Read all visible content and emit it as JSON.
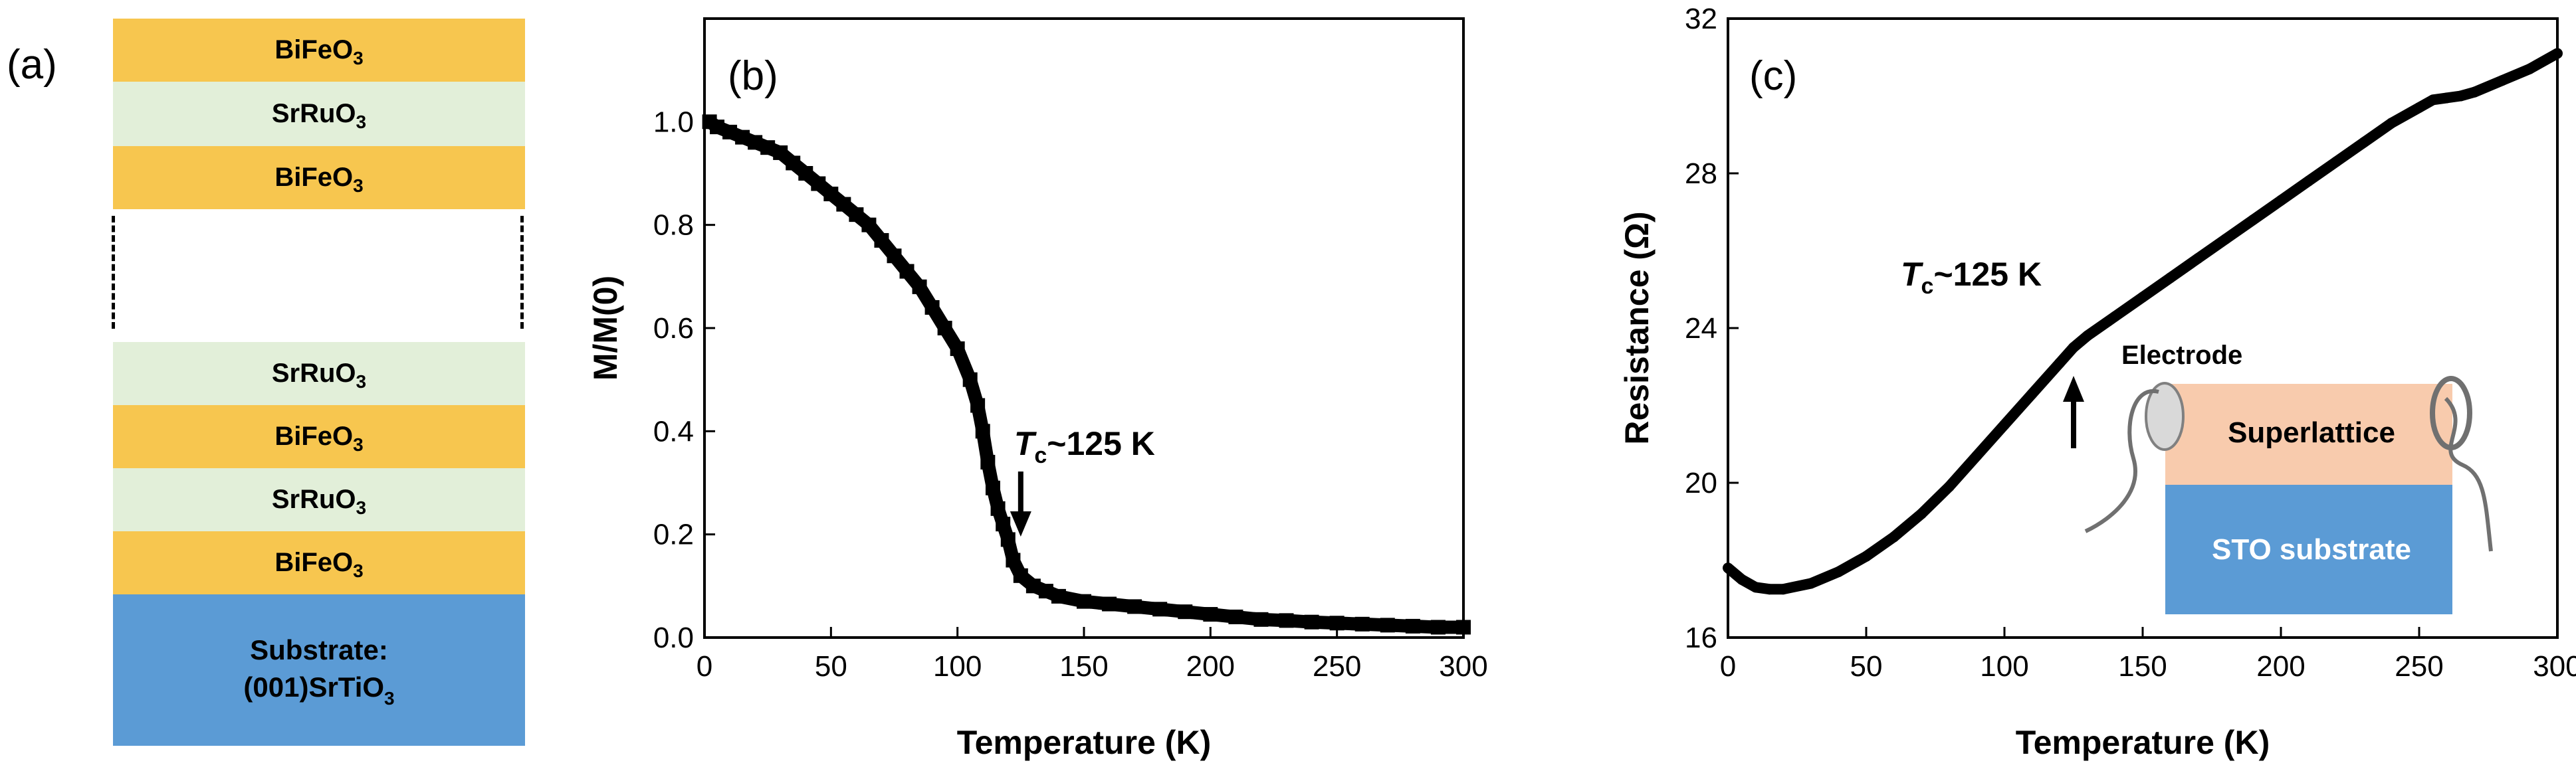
{
  "panel_a": {
    "label": "(a)",
    "layers_top": [
      {
        "formula": "BiFeO",
        "sub": "3",
        "kind": "bfo"
      },
      {
        "formula": "SrRuO",
        "sub": "3",
        "kind": "sro"
      },
      {
        "formula": "BiFeO",
        "sub": "3",
        "kind": "bfo"
      }
    ],
    "layers_bottom": [
      {
        "formula": "SrRuO",
        "sub": "3",
        "kind": "sro"
      },
      {
        "formula": "BiFeO",
        "sub": "3",
        "kind": "bfo"
      },
      {
        "formula": "SrRuO",
        "sub": "3",
        "kind": "sro"
      },
      {
        "formula": "BiFeO",
        "sub": "3",
        "kind": "bfo"
      }
    ],
    "substrate_line1": "Substrate:",
    "substrate_line2": "(001)SrTiO",
    "substrate_sub": "3",
    "colors": {
      "bfo": "#F7C64F",
      "sro": "#E2EFD9",
      "substrate": "#5B9BD5"
    }
  },
  "chart_data": [
    {
      "panel": "(b)",
      "type": "scatter",
      "xlabel": "Temperature (K)",
      "ylabel": "M/M(0)",
      "xlim": [
        0,
        300
      ],
      "ylim": [
        0,
        1.2
      ],
      "xticks": [
        0,
        50,
        100,
        150,
        200,
        250,
        300
      ],
      "yticks": [
        0.0,
        0.2,
        0.4,
        0.6,
        0.8,
        1.0
      ],
      "ytick_labels": [
        "0.0",
        "0.2",
        "0.4",
        "0.6",
        "0.8",
        "1.0"
      ],
      "annotation": {
        "italic": "T",
        "sub": "c",
        "text": "~125 K",
        "arrow_x": 125
      },
      "series": [
        {
          "color": "#000000",
          "x": [
            2,
            5,
            10,
            15,
            20,
            25,
            30,
            35,
            40,
            45,
            50,
            55,
            60,
            65,
            70,
            75,
            80,
            85,
            90,
            95,
            100,
            105,
            108,
            110,
            112,
            114,
            116,
            118,
            120,
            122,
            125,
            130,
            135,
            140,
            150,
            160,
            170,
            180,
            190,
            200,
            210,
            220,
            230,
            240,
            250,
            260,
            270,
            280,
            290,
            300
          ],
          "y": [
            1.0,
            0.99,
            0.98,
            0.97,
            0.96,
            0.95,
            0.94,
            0.92,
            0.9,
            0.88,
            0.86,
            0.84,
            0.82,
            0.8,
            0.77,
            0.74,
            0.71,
            0.68,
            0.64,
            0.6,
            0.56,
            0.5,
            0.45,
            0.4,
            0.34,
            0.29,
            0.25,
            0.22,
            0.19,
            0.15,
            0.12,
            0.1,
            0.09,
            0.08,
            0.07,
            0.065,
            0.06,
            0.055,
            0.05,
            0.045,
            0.04,
            0.035,
            0.033,
            0.03,
            0.028,
            0.026,
            0.024,
            0.022,
            0.02,
            0.02
          ]
        }
      ]
    },
    {
      "panel": "(c)",
      "type": "line",
      "xlabel": "Temperature (K)",
      "ylabel": "Resistance (Ω)",
      "xlim": [
        0,
        300
      ],
      "ylim": [
        16,
        32
      ],
      "xticks": [
        0,
        50,
        100,
        150,
        200,
        250,
        300
      ],
      "yticks": [
        16,
        20,
        24,
        28,
        32
      ],
      "ytick_labels": [
        "16",
        "20",
        "24",
        "28",
        "32"
      ],
      "annotation": {
        "italic": "T",
        "sub": "c",
        "text": "~125 K",
        "arrow_x": 125
      },
      "series": [
        {
          "color": "#000000",
          "x": [
            0,
            5,
            10,
            15,
            20,
            30,
            40,
            50,
            60,
            70,
            80,
            90,
            100,
            110,
            120,
            125,
            130,
            140,
            150,
            160,
            170,
            180,
            190,
            200,
            210,
            220,
            230,
            240,
            250,
            255,
            260,
            265,
            270,
            280,
            290,
            300
          ],
          "y": [
            17.8,
            17.5,
            17.3,
            17.25,
            17.25,
            17.4,
            17.7,
            18.1,
            18.6,
            19.2,
            19.9,
            20.7,
            21.5,
            22.3,
            23.1,
            23.5,
            23.8,
            24.3,
            24.8,
            25.3,
            25.8,
            26.3,
            26.8,
            27.3,
            27.8,
            28.3,
            28.8,
            29.3,
            29.7,
            29.9,
            29.95,
            30.0,
            30.1,
            30.4,
            30.7,
            31.1
          ]
        }
      ],
      "inset": {
        "electrode_label": "Electrode",
        "superlattice_label": "Superlattice",
        "substrate_label": "STO substrate",
        "colors": {
          "superlattice": "#F8CBAD",
          "substrate": "#5B9BD5",
          "electrode": "#D9D9D9"
        }
      }
    }
  ]
}
